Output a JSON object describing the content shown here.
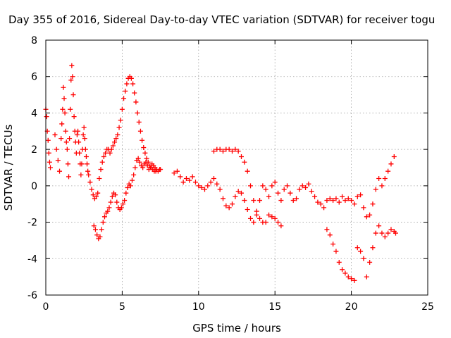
{
  "colors": {
    "series": "#ff0000",
    "grid": "#a0a0a0",
    "axes": "#000000"
  },
  "chart_data": {
    "type": "scatter",
    "title": "Day 355 of 2016, Sidereal Day-to-day VTEC variation (SDTVAR) for receiver togu",
    "xlabel": "GPS time / hours",
    "ylabel": "SDTVAR / TECUs",
    "xlim": [
      0,
      25
    ],
    "ylim": [
      -6,
      8
    ],
    "xticks": [
      0,
      5,
      10,
      15,
      20,
      25
    ],
    "yticks": [
      -6,
      -4,
      -2,
      0,
      2,
      4,
      6,
      8
    ],
    "grid": true,
    "marker": "+",
    "series": [
      {
        "name": "SDTVAR",
        "x": [
          0.0,
          0.05,
          0.1,
          0.15,
          0.2,
          0.25,
          0.3,
          0.6,
          0.7,
          0.8,
          0.9,
          1.0,
          1.05,
          1.1,
          1.15,
          1.2,
          1.25,
          1.3,
          1.35,
          1.4,
          1.45,
          1.5,
          1.55,
          1.6,
          1.65,
          1.7,
          1.75,
          1.8,
          1.85,
          1.9,
          1.95,
          2.0,
          2.05,
          2.1,
          2.15,
          2.2,
          2.25,
          2.3,
          2.35,
          2.4,
          2.45,
          2.5,
          2.55,
          2.6,
          2.65,
          2.7,
          2.75,
          2.8,
          2.9,
          3.0,
          3.1,
          3.2,
          3.3,
          3.4,
          3.5,
          3.6,
          3.7,
          3.8,
          3.9,
          4.0,
          4.1,
          4.2,
          4.3,
          4.4,
          4.5,
          4.6,
          4.7,
          4.8,
          4.9,
          5.0,
          5.1,
          5.2,
          5.3,
          5.4,
          5.5,
          5.6,
          5.7,
          5.8,
          5.9,
          6.0,
          6.1,
          6.2,
          6.3,
          6.4,
          6.5,
          6.6,
          6.7,
          6.8,
          6.9,
          7.0,
          7.1,
          7.2,
          3.15,
          3.25,
          3.35,
          3.45,
          3.55,
          3.65,
          3.75,
          3.85,
          3.95,
          4.05,
          4.15,
          4.25,
          4.35,
          4.45,
          4.55,
          4.65,
          4.75,
          4.85,
          4.95,
          5.05,
          5.15,
          5.25,
          5.35,
          5.45,
          5.55,
          5.65,
          5.75,
          5.85,
          5.95,
          6.05,
          6.15,
          6.25,
          6.35,
          6.45,
          6.55,
          6.65,
          6.75,
          6.85,
          6.95,
          7.05,
          7.15,
          7.25,
          7.35,
          7.45,
          7.5,
          8.4,
          8.6,
          8.8,
          9.0,
          9.2,
          9.4,
          9.6,
          9.8,
          10.0,
          10.2,
          10.4,
          10.6,
          10.8,
          11.0,
          11.2,
          11.4,
          11.6,
          11.8,
          12.0,
          12.2,
          12.4,
          12.6,
          12.8,
          13.0,
          13.2,
          13.4,
          13.6,
          13.8,
          14.0,
          14.2,
          14.4,
          14.6,
          14.8,
          15.0,
          15.2,
          15.4,
          15.6,
          15.8,
          16.0,
          16.2,
          16.4,
          16.6,
          16.8,
          17.0,
          17.2,
          17.4,
          17.6,
          17.8,
          18.0,
          18.2,
          18.4,
          18.6,
          18.8,
          19.0,
          19.2,
          19.4,
          19.6,
          19.8,
          20.0,
          20.2,
          20.4,
          20.6,
          20.8,
          21.0,
          21.2,
          21.4,
          21.6,
          21.8,
          22.0,
          22.2,
          22.4,
          22.6,
          22.8,
          11.0,
          11.2,
          11.4,
          11.6,
          11.8,
          12.0,
          12.2,
          12.4,
          12.6,
          12.8,
          13.0,
          13.2,
          13.4,
          13.6,
          13.8,
          14.0,
          14.2,
          14.4,
          14.6,
          14.8,
          15.0,
          15.2,
          15.4,
          18.4,
          18.6,
          18.8,
          19.0,
          19.2,
          19.4,
          19.6,
          19.8,
          20.0,
          20.2,
          20.4,
          20.6,
          20.8,
          21.0,
          21.2,
          21.4,
          21.6,
          21.8,
          22.0,
          22.2,
          22.4,
          22.6,
          22.8,
          22.9
        ],
        "y": [
          4.2,
          3.8,
          3.0,
          2.5,
          1.8,
          1.3,
          1.0,
          2.8,
          2.0,
          1.4,
          0.8,
          2.6,
          3.4,
          4.2,
          5.4,
          4.8,
          4.0,
          3.0,
          2.4,
          2.0,
          1.2,
          0.5,
          2.6,
          4.2,
          5.8,
          6.6,
          6.0,
          5.0,
          3.8,
          3.0,
          2.4,
          1.8,
          2.8,
          3.0,
          2.4,
          1.8,
          1.2,
          0.6,
          1.2,
          2.0,
          2.8,
          3.2,
          2.6,
          2.0,
          1.6,
          1.2,
          0.8,
          0.6,
          0.2,
          -0.2,
          -0.5,
          -0.7,
          -0.6,
          -0.4,
          0.4,
          0.9,
          1.3,
          1.6,
          1.8,
          2.0,
          2.0,
          1.8,
          2.0,
          2.2,
          2.4,
          2.6,
          2.8,
          3.2,
          3.6,
          4.2,
          4.8,
          5.2,
          5.6,
          5.9,
          6.0,
          5.9,
          5.6,
          5.1,
          4.6,
          4.0,
          3.5,
          3.0,
          2.5,
          2.1,
          1.8,
          1.5,
          1.3,
          1.1,
          1.0,
          0.9,
          0.8,
          0.8,
          -2.2,
          -2.4,
          -2.7,
          -2.9,
          -2.8,
          -2.4,
          -2.0,
          -1.7,
          -1.5,
          -1.4,
          -1.2,
          -0.9,
          -0.6,
          -0.4,
          -0.5,
          -0.9,
          -1.2,
          -1.3,
          -1.2,
          -1.0,
          -0.8,
          -0.4,
          -0.1,
          0.1,
          0.0,
          0.3,
          0.6,
          1.0,
          1.4,
          1.5,
          1.3,
          1.1,
          1.0,
          1.2,
          1.3,
          1.1,
          0.9,
          1.0,
          1.2,
          1.1,
          1.0,
          0.9,
          0.8,
          0.9,
          0.9,
          0.7,
          0.8,
          0.5,
          0.2,
          0.4,
          0.3,
          0.5,
          0.2,
          0.0,
          -0.1,
          -0.2,
          0.0,
          0.2,
          0.4,
          0.1,
          -0.2,
          -0.7,
          -1.1,
          -1.2,
          -1.0,
          -0.6,
          -0.3,
          -0.4,
          -0.8,
          -1.3,
          -1.8,
          -2.0,
          -1.6,
          -0.8,
          0.0,
          -0.2,
          -0.6,
          0.0,
          0.2,
          -0.4,
          -0.8,
          -0.2,
          0.0,
          -0.4,
          -0.8,
          -0.7,
          -0.2,
          0.0,
          -0.1,
          0.1,
          -0.3,
          -0.6,
          -0.9,
          -1.0,
          -1.2,
          -0.8,
          -0.7,
          -0.8,
          -0.7,
          -0.9,
          -0.6,
          -0.8,
          -0.7,
          -0.8,
          -1.0,
          -0.6,
          -0.5,
          -1.2,
          -1.7,
          -1.6,
          -1.0,
          -0.2,
          0.4,
          0.0,
          0.4,
          0.8,
          1.2,
          1.6,
          1.9,
          2.0,
          2.0,
          1.9,
          2.0,
          2.0,
          1.9,
          2.0,
          1.9,
          1.6,
          1.3,
          0.8,
          0.0,
          -0.8,
          -1.4,
          -1.8,
          -2.0,
          -2.0,
          -1.6,
          -1.7,
          -1.8,
          -2.0,
          -2.2,
          -2.4,
          -2.7,
          -3.2,
          -3.6,
          -4.2,
          -4.6,
          -4.8,
          -5.0,
          -5.1,
          -5.2,
          -3.4,
          -3.6,
          -4.0,
          -5.0,
          -4.2,
          -3.4,
          -2.6,
          -2.2,
          -2.6,
          -2.8,
          -2.6,
          -2.4,
          -2.5,
          -2.6
        ]
      }
    ]
  }
}
